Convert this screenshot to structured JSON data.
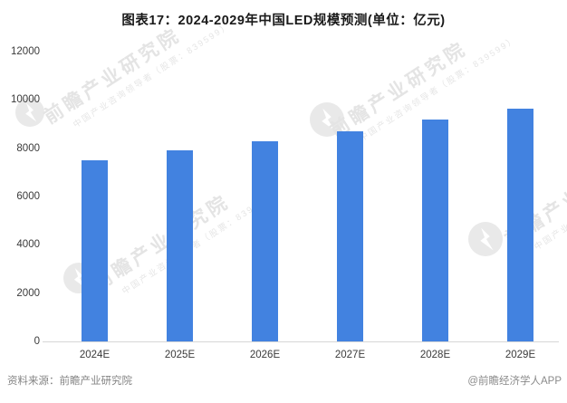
{
  "header": {
    "title": "图表17：2024-2029年中国LED规模预测(单位：亿元)"
  },
  "chart_data": {
    "type": "bar",
    "title": "图表17：2024-2029年中国LED规模预测(单位：亿元)",
    "unit": "亿元",
    "categories": [
      "2024E",
      "2025E",
      "2026E",
      "2027E",
      "2028E",
      "2029E"
    ],
    "values": [
      7500,
      7900,
      8300,
      8700,
      9200,
      9650
    ],
    "xlabel": "",
    "ylabel": "",
    "ylim": [
      0,
      12000
    ],
    "yticks": [
      0,
      2000,
      4000,
      6000,
      8000,
      10000,
      12000
    ],
    "bar_color": "#4282e0",
    "grid": "off",
    "legend": "none"
  },
  "footer": {
    "source": "资料来源：前瞻产业研究院",
    "credit": "@前瞻经济学人APP"
  },
  "watermark": {
    "big_text": "前瞻产业研究院",
    "small_text": "中国产业咨询领导者（股票：839599）",
    "text_color": "#e4e4e4",
    "logo_color": "#e9e9e9"
  }
}
